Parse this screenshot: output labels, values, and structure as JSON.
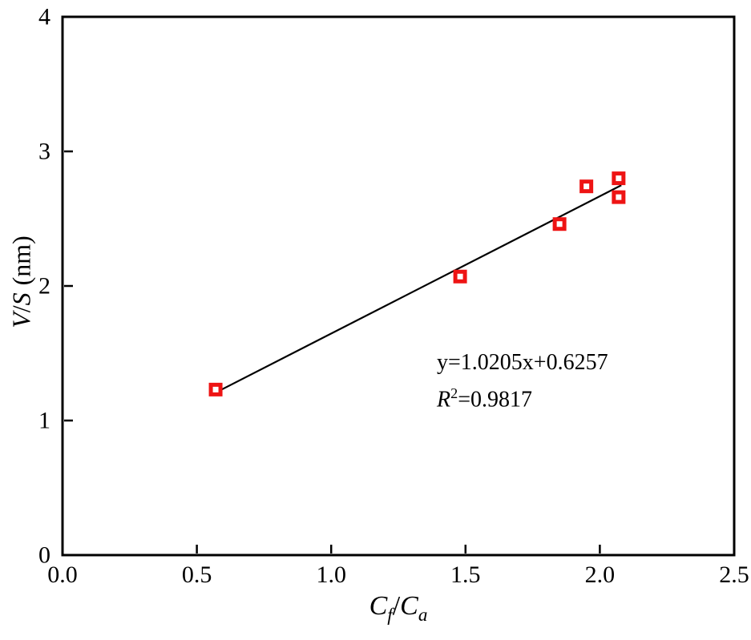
{
  "figure": {
    "background_color": "#ffffff",
    "axis_color": "#000000"
  },
  "chart_data": {
    "type": "scatter",
    "title": "",
    "xlabel": "C_f/C_a",
    "ylabel": "V/S (nm)",
    "xlabel_parts": {
      "c1": "C",
      "sub1": "f",
      "slash": "/",
      "c2": "C",
      "sub2": "a"
    },
    "ylabel_parts": {
      "v": "V",
      "slash": "/",
      "s": "S",
      "unit": "(nm)"
    },
    "xlim": [
      0.0,
      2.5
    ],
    "ylim": [
      0,
      4
    ],
    "xticks": [
      "0.0",
      "0.5",
      "1.0",
      "1.5",
      "2.0",
      "2.5"
    ],
    "xtick_values": [
      0,
      0.5,
      1.0,
      1.5,
      2.0,
      2.5
    ],
    "yticks": [
      "0",
      "1",
      "2",
      "3",
      "4"
    ],
    "ytick_values": [
      0,
      1,
      2,
      3,
      4
    ],
    "grid": false,
    "points": [
      {
        "x": 0.57,
        "y": 1.23
      },
      {
        "x": 1.48,
        "y": 2.07
      },
      {
        "x": 1.85,
        "y": 2.46
      },
      {
        "x": 1.95,
        "y": 2.74
      },
      {
        "x": 2.07,
        "y": 2.8
      },
      {
        "x": 2.07,
        "y": 2.66
      }
    ],
    "fit_line": {
      "slope": 1.0205,
      "intercept": 0.6257,
      "x_start": 0.58,
      "x_end": 2.08
    },
    "line_color": "#000000",
    "marker": {
      "shape": "open-square",
      "color": "#ee1414",
      "size": 17,
      "stroke_width": 5
    },
    "annotation": {
      "line1": "y=1.0205x+0.6257",
      "r_var": "R",
      "r_exponent": "2",
      "r_value": "=0.9817"
    }
  }
}
